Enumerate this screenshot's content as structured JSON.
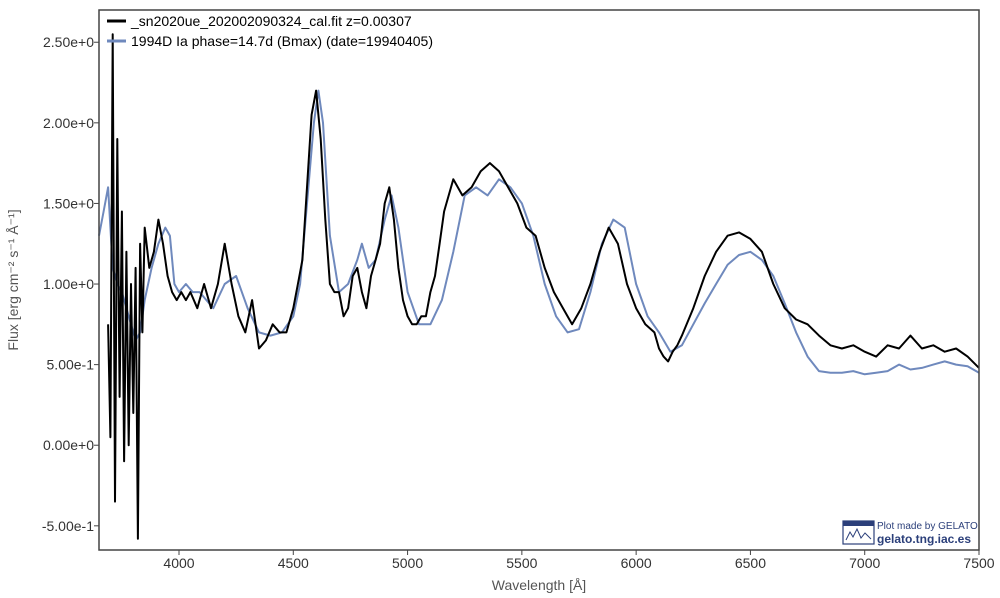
{
  "chart_data": {
    "type": "line",
    "xlabel": "Wavelength [Å]",
    "ylabel": "Flux [erg cm⁻² s⁻¹ Å⁻¹]",
    "xlim": [
      3650,
      7500
    ],
    "ylim": [
      -0.65,
      2.7
    ],
    "x_ticks": [
      4000,
      4500,
      5000,
      5500,
      6000,
      6500,
      7000,
      7500
    ],
    "x_tick_labels": [
      "4000",
      "4500",
      "5000",
      "5500",
      "6000",
      "6500",
      "7000",
      "7500"
    ],
    "y_ticks": [
      -0.5,
      0.0,
      0.5,
      1.0,
      1.5,
      2.0,
      2.5
    ],
    "y_tick_labels": [
      "-5.00e-1",
      "0.00e+0",
      "5.00e-1",
      "1.00e+0",
      "1.50e+0",
      "2.00e+0",
      "2.50e+0"
    ],
    "grid": false,
    "legend_position": "top-left",
    "series": [
      {
        "name": "_sn2020ue_202002090324_cal.fit  z=0.00307",
        "color": "#000000",
        "x": [
          3690,
          3700,
          3710,
          3720,
          3730,
          3740,
          3750,
          3760,
          3770,
          3780,
          3790,
          3800,
          3810,
          3820,
          3830,
          3840,
          3850,
          3870,
          3890,
          3910,
          3930,
          3950,
          3970,
          3990,
          4010,
          4030,
          4050,
          4080,
          4110,
          4140,
          4170,
          4200,
          4230,
          4260,
          4290,
          4320,
          4350,
          4380,
          4410,
          4440,
          4470,
          4500,
          4520,
          4540,
          4560,
          4580,
          4600,
          4620,
          4640,
          4660,
          4680,
          4700,
          4720,
          4740,
          4760,
          4780,
          4800,
          4820,
          4840,
          4860,
          4880,
          4900,
          4920,
          4940,
          4960,
          4980,
          5000,
          5020,
          5040,
          5060,
          5080,
          5100,
          5120,
          5140,
          5160,
          5180,
          5200,
          5240,
          5280,
          5320,
          5360,
          5400,
          5440,
          5480,
          5520,
          5560,
          5600,
          5640,
          5680,
          5720,
          5760,
          5800,
          5840,
          5880,
          5920,
          5960,
          6000,
          6040,
          6080,
          6100,
          6120,
          6140,
          6160,
          6180,
          6200,
          6250,
          6300,
          6350,
          6400,
          6450,
          6500,
          6550,
          6600,
          6650,
          6700,
          6750,
          6800,
          6850,
          6900,
          6950,
          7000,
          7050,
          7100,
          7150,
          7200,
          7250,
          7300,
          7350,
          7400,
          7450,
          7500
        ],
        "y": [
          0.75,
          0.05,
          2.55,
          -0.35,
          1.9,
          0.3,
          1.45,
          -0.1,
          1.2,
          0.0,
          1.0,
          0.2,
          1.1,
          -0.58,
          1.25,
          0.7,
          1.35,
          1.1,
          1.2,
          1.4,
          1.25,
          1.05,
          0.95,
          0.9,
          0.95,
          0.9,
          0.95,
          0.85,
          1.0,
          0.85,
          1.0,
          1.25,
          1.0,
          0.8,
          0.7,
          0.9,
          0.6,
          0.65,
          0.75,
          0.7,
          0.7,
          0.85,
          1.0,
          1.15,
          1.6,
          2.05,
          2.2,
          1.9,
          1.4,
          1.0,
          0.95,
          0.95,
          0.8,
          0.85,
          1.05,
          1.1,
          0.95,
          0.85,
          1.05,
          1.15,
          1.25,
          1.5,
          1.6,
          1.4,
          1.1,
          0.9,
          0.8,
          0.75,
          0.75,
          0.8,
          0.8,
          0.95,
          1.05,
          1.25,
          1.45,
          1.55,
          1.65,
          1.55,
          1.6,
          1.7,
          1.75,
          1.7,
          1.6,
          1.5,
          1.35,
          1.3,
          1.1,
          0.95,
          0.85,
          0.75,
          0.85,
          1.0,
          1.2,
          1.35,
          1.25,
          1.0,
          0.85,
          0.75,
          0.7,
          0.6,
          0.55,
          0.52,
          0.58,
          0.62,
          0.68,
          0.85,
          1.05,
          1.2,
          1.3,
          1.32,
          1.28,
          1.2,
          1.0,
          0.85,
          0.78,
          0.75,
          0.68,
          0.62,
          0.6,
          0.62,
          0.58,
          0.55,
          0.62,
          0.6,
          0.68,
          0.6,
          0.62,
          0.58,
          0.6,
          0.55,
          0.48
        ]
      },
      {
        "name": "1994D  Ia  phase=14.7d (Bmax)  (date=19940405)",
        "color": "#6f89bd",
        "x": [
          3650,
          3670,
          3690,
          3710,
          3730,
          3750,
          3770,
          3790,
          3810,
          3830,
          3850,
          3880,
          3910,
          3940,
          3960,
          3980,
          4000,
          4030,
          4060,
          4090,
          4120,
          4150,
          4200,
          4250,
          4300,
          4350,
          4400,
          4450,
          4500,
          4530,
          4560,
          4590,
          4610,
          4630,
          4660,
          4700,
          4740,
          4780,
          4800,
          4830,
          4860,
          4900,
          4930,
          4960,
          5000,
          5050,
          5100,
          5150,
          5200,
          5250,
          5300,
          5350,
          5400,
          5450,
          5500,
          5550,
          5600,
          5650,
          5700,
          5750,
          5800,
          5850,
          5900,
          5950,
          6000,
          6050,
          6100,
          6150,
          6200,
          6250,
          6300,
          6350,
          6400,
          6450,
          6500,
          6550,
          6600,
          6650,
          6700,
          6750,
          6800,
          6850,
          6900,
          6950,
          7000,
          7050,
          7100,
          7150,
          7200,
          7250,
          7300,
          7350,
          7400,
          7450,
          7500
        ],
        "y": [
          1.3,
          1.45,
          1.6,
          1.1,
          1.0,
          0.95,
          0.85,
          0.75,
          0.65,
          0.7,
          0.9,
          1.1,
          1.25,
          1.35,
          1.3,
          1.0,
          0.95,
          1.0,
          0.95,
          0.95,
          0.9,
          0.85,
          1.0,
          1.05,
          0.85,
          0.7,
          0.68,
          0.7,
          0.8,
          1.0,
          1.5,
          2.0,
          2.2,
          2.0,
          1.3,
          0.95,
          1.0,
          1.15,
          1.25,
          1.1,
          1.15,
          1.4,
          1.55,
          1.35,
          0.95,
          0.75,
          0.75,
          0.9,
          1.2,
          1.55,
          1.6,
          1.55,
          1.65,
          1.6,
          1.5,
          1.3,
          1.0,
          0.8,
          0.7,
          0.72,
          0.95,
          1.25,
          1.4,
          1.35,
          1.0,
          0.8,
          0.7,
          0.58,
          0.62,
          0.75,
          0.88,
          1.0,
          1.12,
          1.18,
          1.2,
          1.15,
          1.05,
          0.88,
          0.7,
          0.55,
          0.46,
          0.45,
          0.45,
          0.46,
          0.44,
          0.45,
          0.46,
          0.5,
          0.47,
          0.48,
          0.5,
          0.52,
          0.5,
          0.49,
          0.45
        ]
      }
    ]
  },
  "credit": {
    "line1": "Plot made by GELATO",
    "line2": "gelato.tng.iac.es",
    "logo_text": "GELATO"
  }
}
